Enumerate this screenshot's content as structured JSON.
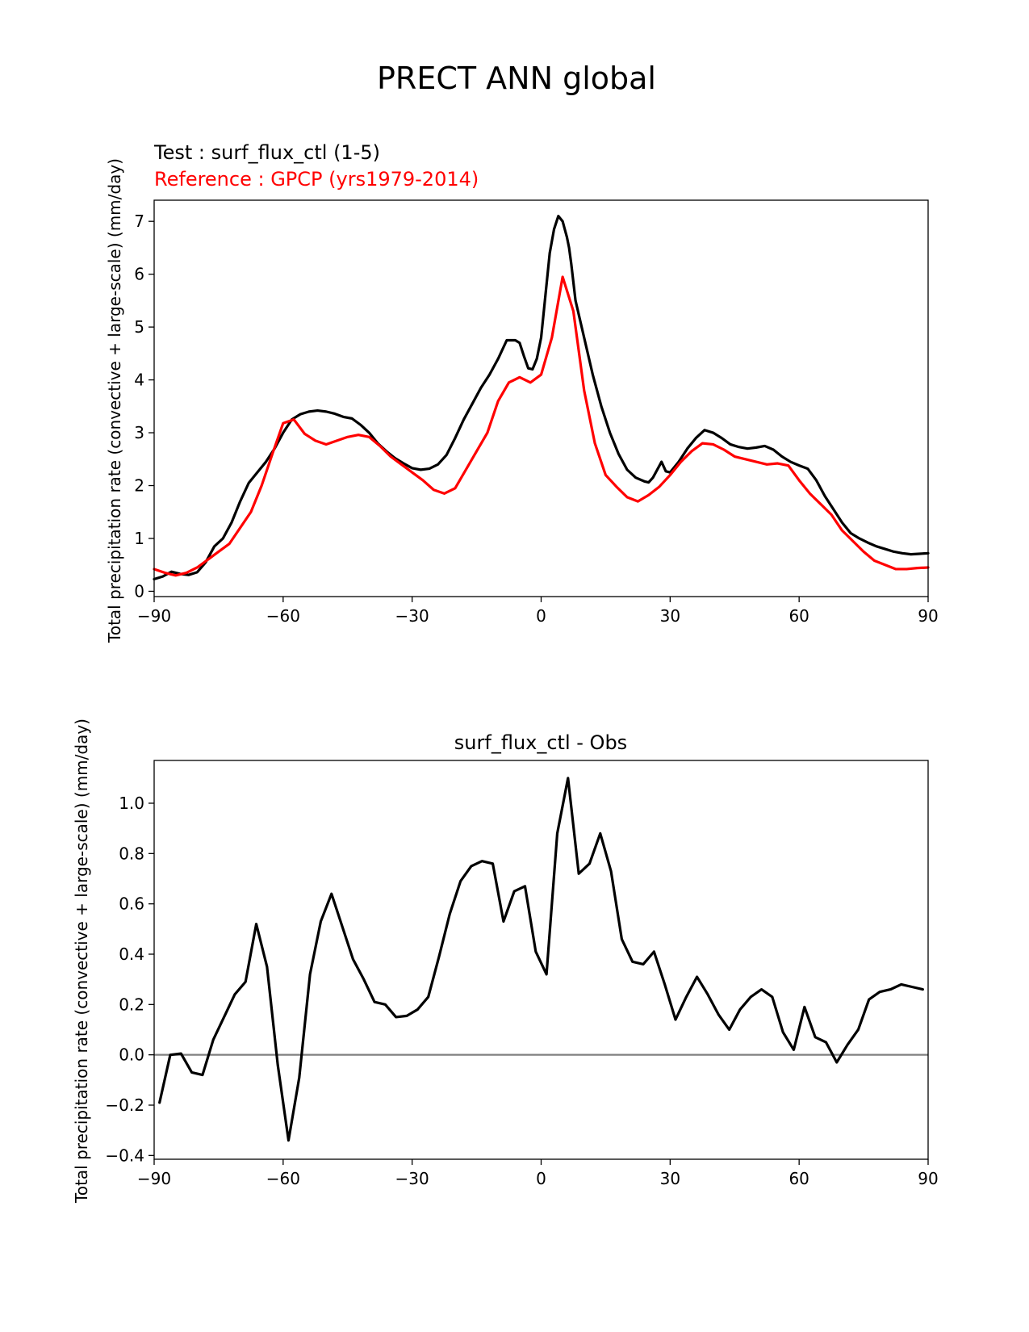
{
  "figure": {
    "title": "PRECT ANN global"
  },
  "chart_data": [
    {
      "type": "line",
      "test_label": "Test : surf_flux_ctl (1-5)",
      "reference_label": "Reference : GPCP (yrs1979-2014)",
      "ylabel": "Total precipitation rate (convective + large-scale) (mm/day)",
      "xlim": [
        -90,
        90
      ],
      "ylim": [
        -0.1,
        7.4
      ],
      "xticks": [
        -90,
        -60,
        -30,
        0,
        30,
        60,
        90
      ],
      "xtick_labels": [
        "−90",
        "−60",
        "−30",
        "0",
        "30",
        "60",
        "90"
      ],
      "yticks": [
        0,
        1,
        2,
        3,
        4,
        5,
        6,
        7
      ],
      "ytick_labels": [
        "0",
        "1",
        "2",
        "3",
        "4",
        "5",
        "6",
        "7"
      ],
      "grid": false,
      "series": [
        {
          "name": "",
          "color": "#000000",
          "x": [
            -90,
            -88,
            -86,
            -84,
            -82,
            -80,
            -78,
            -76,
            -74,
            -72,
            -70,
            -68,
            -66,
            -64,
            -62,
            -60,
            -58,
            -56,
            -54,
            -52,
            -50,
            -48,
            -46,
            -44,
            -42,
            -40,
            -38,
            -36,
            -34,
            -32,
            -30,
            -28,
            -26,
            -24,
            -22,
            -20,
            -18,
            -16,
            -14,
            -12,
            -10,
            -8,
            -6,
            -5,
            -4,
            -3,
            -2,
            -1,
            0,
            1,
            2,
            3,
            4,
            5,
            5.5,
            6,
            6.5,
            7,
            8,
            10,
            12,
            14,
            16,
            18,
            20,
            22,
            24,
            25,
            26,
            27,
            28,
            29,
            30,
            32,
            34,
            36,
            38,
            40,
            42,
            44,
            46,
            48,
            50,
            52,
            54,
            56,
            58,
            60,
            62,
            64,
            66,
            68,
            70,
            72,
            74,
            76,
            78,
            80,
            82,
            84,
            86,
            88,
            90
          ],
          "y": [
            0.23,
            0.28,
            0.37,
            0.33,
            0.31,
            0.36,
            0.55,
            0.85,
            1.0,
            1.3,
            1.7,
            2.05,
            2.25,
            2.45,
            2.7,
            3.0,
            3.25,
            3.35,
            3.4,
            3.42,
            3.4,
            3.36,
            3.3,
            3.27,
            3.15,
            3.0,
            2.8,
            2.65,
            2.52,
            2.42,
            2.33,
            2.3,
            2.32,
            2.4,
            2.58,
            2.9,
            3.25,
            3.55,
            3.85,
            4.1,
            4.4,
            4.75,
            4.75,
            4.7,
            4.45,
            4.22,
            4.2,
            4.4,
            4.8,
            5.6,
            6.4,
            6.85,
            7.1,
            7.0,
            6.85,
            6.7,
            6.5,
            6.2,
            5.5,
            4.8,
            4.1,
            3.5,
            3.0,
            2.6,
            2.3,
            2.15,
            2.08,
            2.06,
            2.15,
            2.3,
            2.45,
            2.27,
            2.25,
            2.45,
            2.7,
            2.9,
            3.05,
            3.0,
            2.9,
            2.78,
            2.73,
            2.7,
            2.72,
            2.75,
            2.68,
            2.55,
            2.45,
            2.38,
            2.32,
            2.1,
            1.8,
            1.55,
            1.3,
            1.1,
            1.0,
            0.92,
            0.85,
            0.8,
            0.75,
            0.72,
            0.7,
            0.71,
            0.72
          ]
        },
        {
          "name": "",
          "color": "#ff0000",
          "x": [
            -90,
            -87.5,
            -85,
            -82.5,
            -80,
            -77.5,
            -75,
            -72.5,
            -70,
            -67.5,
            -65,
            -62.5,
            -60,
            -57.5,
            -55,
            -52.5,
            -50,
            -47.5,
            -45,
            -42.5,
            -40,
            -37.5,
            -35,
            -32.5,
            -30,
            -27.5,
            -25,
            -22.5,
            -20,
            -17.5,
            -15,
            -12.5,
            -10,
            -7.5,
            -5,
            -2.5,
            0,
            2.5,
            5,
            7.5,
            10,
            12.5,
            15,
            17.5,
            20,
            22.5,
            25,
            27.5,
            30,
            32.5,
            35,
            37.5,
            40,
            42.5,
            45,
            47.5,
            50,
            52.5,
            55,
            57.5,
            60,
            62.5,
            65,
            67.5,
            70,
            72.5,
            75,
            77.5,
            80,
            82.5,
            85,
            87.5,
            90
          ],
          "y": [
            0.42,
            0.35,
            0.3,
            0.35,
            0.45,
            0.6,
            0.75,
            0.9,
            1.2,
            1.5,
            2.0,
            2.6,
            3.18,
            3.25,
            2.98,
            2.85,
            2.78,
            2.85,
            2.92,
            2.96,
            2.92,
            2.75,
            2.55,
            2.4,
            2.25,
            2.1,
            1.92,
            1.85,
            1.95,
            2.3,
            2.65,
            3.0,
            3.6,
            3.95,
            4.05,
            3.95,
            4.1,
            4.8,
            5.95,
            5.3,
            3.8,
            2.8,
            2.2,
            1.98,
            1.78,
            1.7,
            1.82,
            1.98,
            2.2,
            2.45,
            2.65,
            2.8,
            2.78,
            2.68,
            2.55,
            2.5,
            2.45,
            2.4,
            2.42,
            2.38,
            2.1,
            1.85,
            1.65,
            1.45,
            1.15,
            0.95,
            0.75,
            0.58,
            0.5,
            0.42,
            0.42,
            0.44,
            0.45
          ]
        }
      ]
    },
    {
      "type": "line",
      "title": "surf_flux_ctl - Obs",
      "ylabel": "Total precipitation rate (convective + large-scale) (mm/day)",
      "xlim": [
        -90,
        90
      ],
      "ylim": [
        -0.415,
        1.17
      ],
      "xticks": [
        -90,
        -60,
        -30,
        0,
        30,
        60,
        90
      ],
      "xtick_labels": [
        "−90",
        "−60",
        "−30",
        "0",
        "30",
        "60",
        "90"
      ],
      "yticks": [
        -0.4,
        -0.2,
        0.0,
        0.2,
        0.4,
        0.6,
        0.8,
        1.0
      ],
      "ytick_labels": [
        "−0.4",
        "−0.2",
        "0.0",
        "0.2",
        "0.4",
        "0.6",
        "0.8",
        "1.0"
      ],
      "grid": false,
      "zero_line": {
        "y": 0,
        "color": "#808080"
      },
      "series": [
        {
          "name": "",
          "color": "#000000",
          "x": [
            -88.75,
            -86.25,
            -83.75,
            -81.25,
            -78.75,
            -76.25,
            -73.75,
            -71.25,
            -68.75,
            -66.25,
            -63.75,
            -61.25,
            -58.75,
            -56.25,
            -53.75,
            -51.25,
            -48.75,
            -46.25,
            -43.75,
            -41.25,
            -38.75,
            -36.25,
            -33.75,
            -31.25,
            -28.75,
            -26.25,
            -23.75,
            -21.25,
            -18.75,
            -16.25,
            -13.75,
            -11.25,
            -8.75,
            -6.25,
            -3.75,
            -1.25,
            1.25,
            3.75,
            6.25,
            8.75,
            11.25,
            13.75,
            16.25,
            18.75,
            21.25,
            23.75,
            26.25,
            28.75,
            31.25,
            33.75,
            36.25,
            38.75,
            41.25,
            43.75,
            46.25,
            48.75,
            51.25,
            53.75,
            56.25,
            58.75,
            61.25,
            63.75,
            66.25,
            68.75,
            71.25,
            73.75,
            76.25,
            78.75,
            81.25,
            83.75,
            86.25,
            88.75
          ],
          "y": [
            -0.19,
            0.0,
            0.005,
            -0.07,
            -0.08,
            0.06,
            0.15,
            0.24,
            0.29,
            0.52,
            0.35,
            -0.04,
            -0.34,
            -0.09,
            0.32,
            0.53,
            0.64,
            0.51,
            0.38,
            0.3,
            0.21,
            0.2,
            0.15,
            0.155,
            0.18,
            0.23,
            0.39,
            0.56,
            0.69,
            0.75,
            0.77,
            0.76,
            0.53,
            0.65,
            0.67,
            0.41,
            0.32,
            0.88,
            1.1,
            0.72,
            0.76,
            0.88,
            0.73,
            0.46,
            0.37,
            0.36,
            0.41,
            0.28,
            0.14,
            0.23,
            0.31,
            0.24,
            0.16,
            0.1,
            0.18,
            0.23,
            0.26,
            0.23,
            0.09,
            0.02,
            0.19,
            0.07,
            0.05,
            -0.03,
            0.04,
            0.1,
            0.22,
            0.25,
            0.26,
            0.28,
            0.27,
            0.26
          ]
        }
      ]
    }
  ]
}
